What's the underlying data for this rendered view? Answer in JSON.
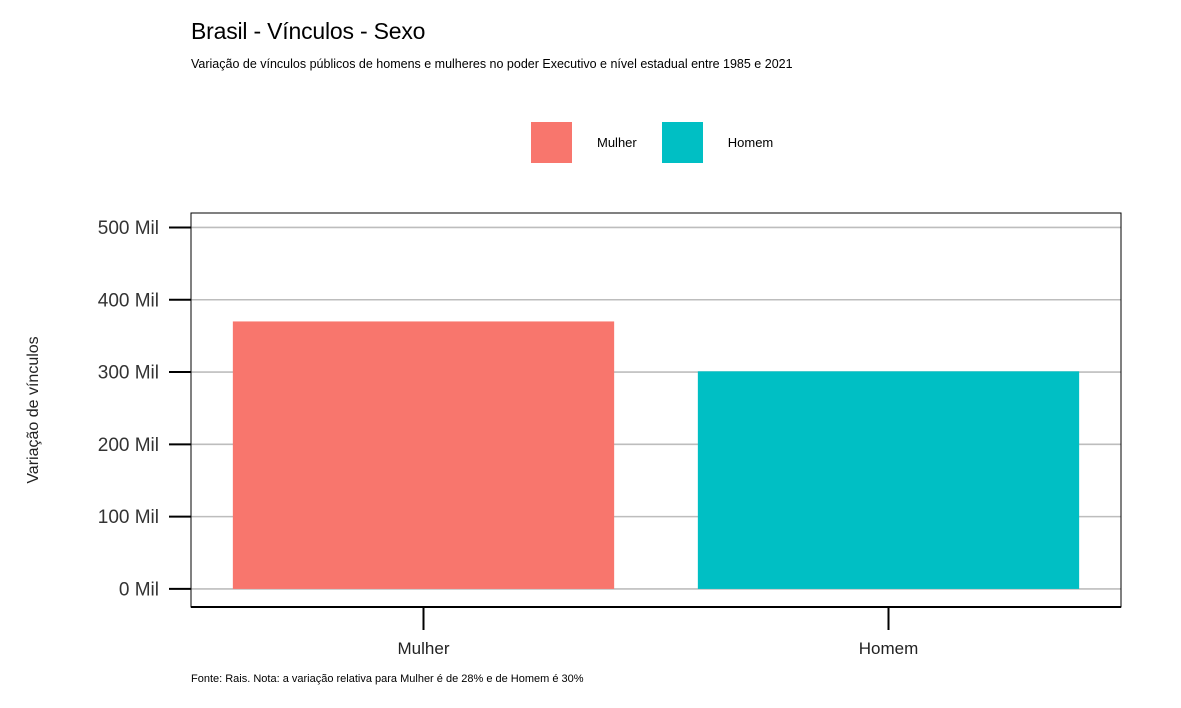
{
  "chart_data": {
    "type": "bar",
    "title": "Brasil - Vínculos - Sexo",
    "subtitle": "Variação de vínculos públicos de homens e mulheres no poder Executivo e nível estadual entre 1985 e 2021",
    "caption": "Fonte: Rais. Nota: a variação relativa para Mulher é de 28% e de Homem é 30%",
    "xlabel": "",
    "ylabel": "Variação de vínculos",
    "categories": [
      "Mulher",
      "Homem"
    ],
    "values": [
      370000,
      301000
    ],
    "colors": [
      "#F8766D",
      "#00BFC4"
    ],
    "ylim": [
      -25000,
      520000
    ],
    "yticks": [
      0,
      100000,
      200000,
      300000,
      400000,
      500000
    ],
    "ytick_labels": [
      "0 Mil",
      "100 Mil",
      "200 Mil",
      "300 Mil",
      "400 Mil",
      "500 Mil"
    ],
    "grid": true,
    "legend": {
      "position": "top",
      "entries": [
        {
          "label": "Mulher",
          "color": "#F8766D"
        },
        {
          "label": "Homem",
          "color": "#00BFC4"
        }
      ]
    }
  }
}
